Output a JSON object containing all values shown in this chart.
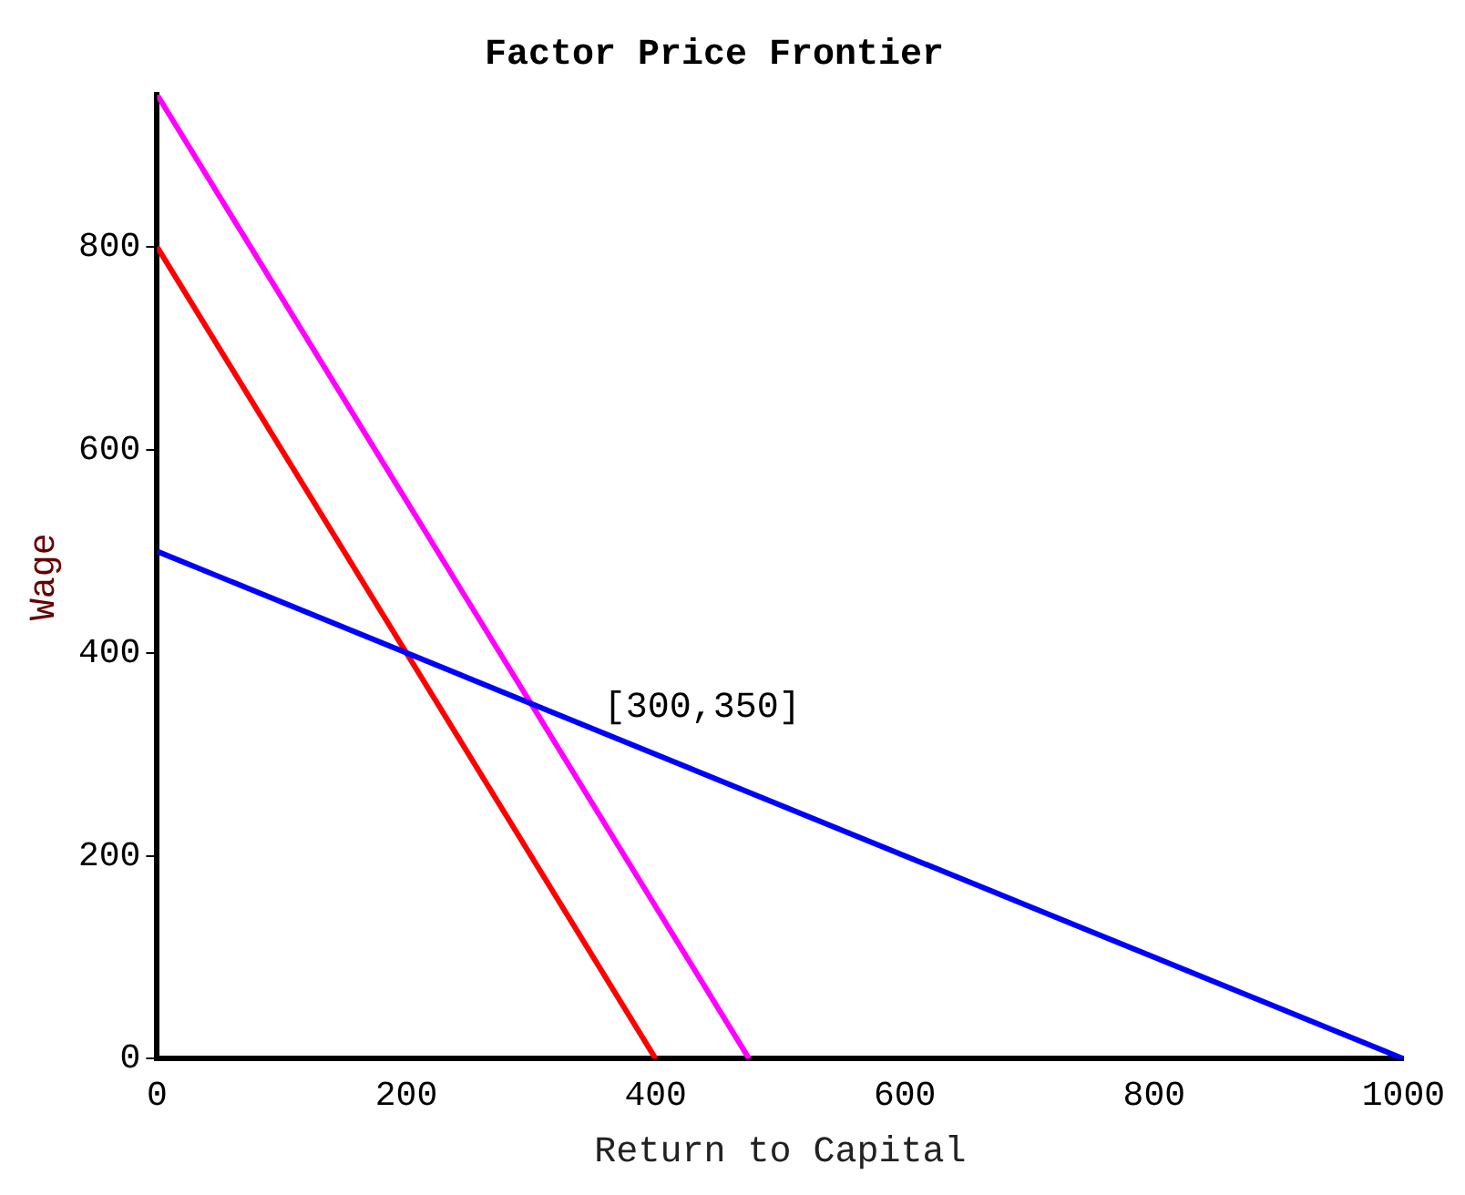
{
  "chart_data": {
    "type": "line",
    "title": "Factor Price Frontier",
    "xlabel": "Return to Capital",
    "ylabel": "Wage",
    "xlim": [
      0,
      1000
    ],
    "ylim": [
      0,
      950
    ],
    "xticks": [
      0,
      200,
      400,
      600,
      800,
      1000
    ],
    "yticks": [
      0,
      200,
      400,
      600,
      800
    ],
    "series": [
      {
        "color": "#0000ff",
        "x": [
          0,
          1000
        ],
        "values": [
          500,
          0
        ]
      },
      {
        "color": "#ff0000",
        "x": [
          0,
          400
        ],
        "values": [
          800,
          0
        ]
      },
      {
        "color": "#ff00ff",
        "x": [
          0,
          475
        ],
        "values": [
          950,
          0
        ]
      }
    ],
    "annotations": [
      {
        "text": "[300,350]",
        "x": 300,
        "y": 350
      }
    ],
    "grid": false,
    "legend": false,
    "marker": "none",
    "line_style": "solid"
  }
}
